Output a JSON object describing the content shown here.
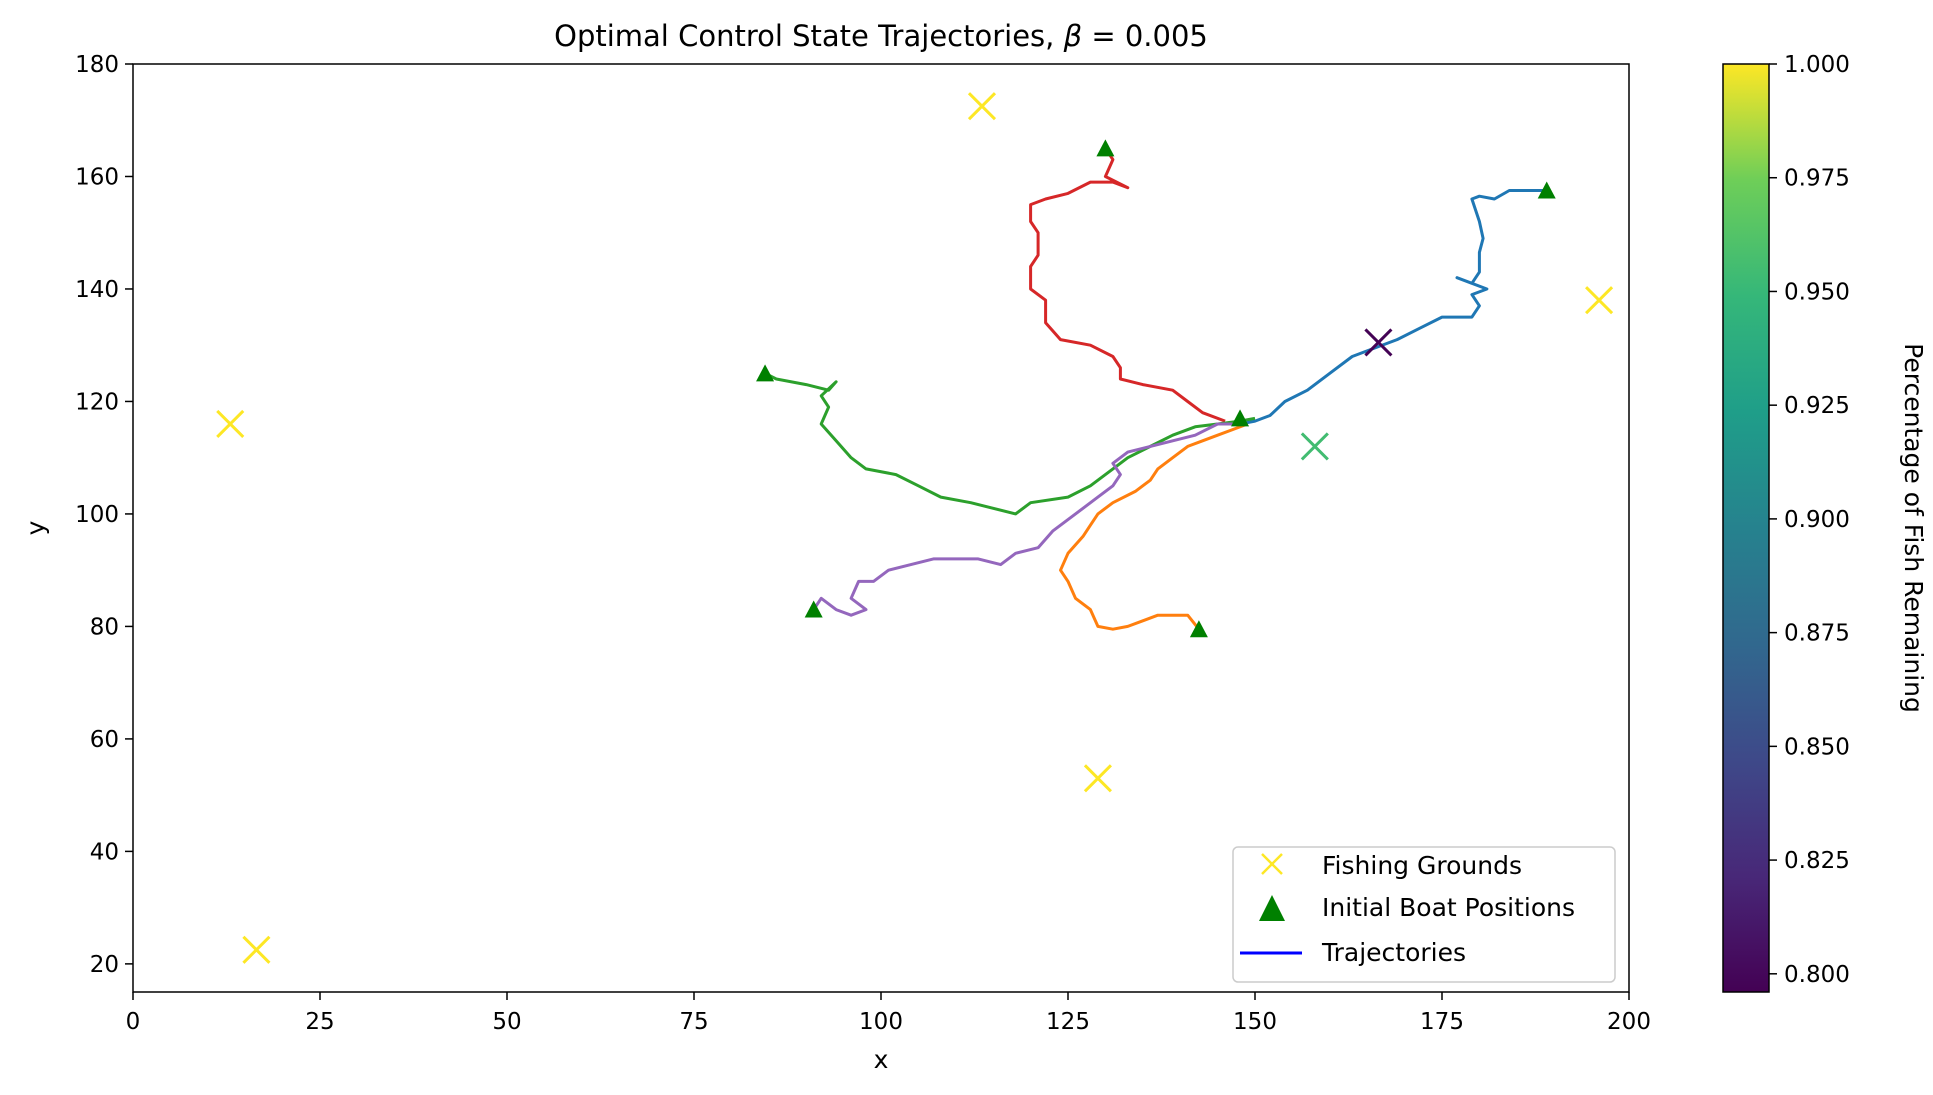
{
  "chart_data": {
    "type": "scatter",
    "title": "Optimal Control State Trajectories, β = 0.005",
    "title_prefix": "Optimal Control State Trajectories, ",
    "title_symbol": "β",
    "title_suffix": " = 0.005",
    "xlabel": "x",
    "ylabel": "y",
    "xlim": [
      0,
      200
    ],
    "ylim": [
      15,
      180
    ],
    "xticks": [
      0,
      25,
      50,
      75,
      100,
      125,
      150,
      175,
      200
    ],
    "yticks": [
      20,
      40,
      60,
      80,
      100,
      120,
      140,
      160,
      180
    ],
    "grid": false,
    "legend_position": "lower right",
    "legend": [
      {
        "label": "Fishing Grounds",
        "marker": "x",
        "color": "#fde725"
      },
      {
        "label": "Initial Boat Positions",
        "marker": "triangle",
        "color": "#008000"
      },
      {
        "label": "Trajectories",
        "marker": "line",
        "color": "#0000ff"
      }
    ],
    "colorbar": {
      "label": "Percentage of Fish Remaining",
      "range": [
        0.796,
        1.0
      ],
      "ticks": [
        "0.800",
        "0.825",
        "0.850",
        "0.875",
        "0.900",
        "0.925",
        "0.950",
        "0.975",
        "1.000"
      ],
      "colormap": "viridis"
    },
    "fishing_grounds": [
      {
        "x": 113.5,
        "y": 172.5,
        "value": 1.0
      },
      {
        "x": 13,
        "y": 116,
        "value": 1.0
      },
      {
        "x": 16.5,
        "y": 22.5,
        "value": 1.0
      },
      {
        "x": 129,
        "y": 53,
        "value": 1.0
      },
      {
        "x": 196,
        "y": 138,
        "value": 1.0
      },
      {
        "x": 158,
        "y": 112,
        "value": 0.955
      },
      {
        "x": 166.5,
        "y": 130.5,
        "value": 0.797
      }
    ],
    "initial_boats": [
      {
        "x": 130,
        "y": 165
      },
      {
        "x": 189,
        "y": 157.5
      },
      {
        "x": 84.5,
        "y": 125
      },
      {
        "x": 91,
        "y": 83
      },
      {
        "x": 142.5,
        "y": 79.5
      },
      {
        "x": 148,
        "y": 117
      }
    ],
    "trajectories": [
      {
        "color": "#1f77b4",
        "points": [
          [
            189,
            157.5
          ],
          [
            184,
            157.5
          ],
          [
            182,
            156
          ],
          [
            180,
            156.5
          ],
          [
            179,
            156
          ],
          [
            180,
            152
          ],
          [
            180.5,
            149
          ],
          [
            180,
            146.5
          ],
          [
            180,
            143
          ],
          [
            179,
            141
          ],
          [
            177,
            142
          ],
          [
            181,
            140
          ],
          [
            179,
            139
          ],
          [
            180,
            137
          ],
          [
            179,
            135
          ],
          [
            175,
            135
          ],
          [
            172,
            133
          ],
          [
            169,
            131
          ],
          [
            166,
            129.5
          ],
          [
            163,
            128
          ],
          [
            160,
            125
          ],
          [
            157,
            122
          ],
          [
            154,
            120
          ],
          [
            152,
            117.5
          ],
          [
            150,
            116.5
          ],
          [
            148,
            116
          ]
        ]
      },
      {
        "color": "#d62728",
        "points": [
          [
            130,
            165
          ],
          [
            131,
            163
          ],
          [
            130,
            160
          ],
          [
            133,
            158
          ],
          [
            131,
            159
          ],
          [
            128,
            159
          ],
          [
            125,
            157
          ],
          [
            122,
            156
          ],
          [
            120,
            155
          ],
          [
            120,
            152
          ],
          [
            121,
            150
          ],
          [
            121,
            146
          ],
          [
            120,
            144
          ],
          [
            120,
            140
          ],
          [
            122,
            138
          ],
          [
            122,
            134
          ],
          [
            124,
            131
          ],
          [
            128,
            130
          ],
          [
            131,
            128
          ],
          [
            132,
            126
          ],
          [
            132,
            124
          ],
          [
            135,
            123
          ],
          [
            139,
            122
          ],
          [
            141,
            120
          ],
          [
            143,
            118
          ],
          [
            146,
            116.5
          ]
        ]
      },
      {
        "color": "#2ca02c",
        "points": [
          [
            84.5,
            125
          ],
          [
            86,
            124
          ],
          [
            90,
            123
          ],
          [
            93,
            122
          ],
          [
            94,
            123.5
          ],
          [
            92,
            121
          ],
          [
            93,
            119
          ],
          [
            92,
            116
          ],
          [
            94,
            113
          ],
          [
            96,
            110
          ],
          [
            98,
            108
          ],
          [
            102,
            107
          ],
          [
            105,
            105
          ],
          [
            108,
            103
          ],
          [
            112,
            102
          ],
          [
            115,
            101
          ],
          [
            118,
            100
          ],
          [
            120,
            102
          ],
          [
            125,
            103
          ],
          [
            128,
            105
          ],
          [
            131,
            108
          ],
          [
            133,
            110
          ],
          [
            136,
            112
          ],
          [
            139,
            114
          ],
          [
            142,
            115.5
          ],
          [
            145,
            116
          ],
          [
            148,
            116.5
          ],
          [
            150,
            117
          ]
        ]
      },
      {
        "color": "#ff7f0e",
        "points": [
          [
            142.5,
            79.5
          ],
          [
            141,
            82
          ],
          [
            137,
            82
          ],
          [
            135,
            81
          ],
          [
            133,
            80
          ],
          [
            131,
            79.5
          ],
          [
            129,
            80
          ],
          [
            128,
            83
          ],
          [
            126,
            85
          ],
          [
            125,
            88
          ],
          [
            124,
            90
          ],
          [
            125,
            93
          ],
          [
            127,
            96
          ],
          [
            128,
            98
          ],
          [
            129,
            100
          ],
          [
            131,
            102
          ],
          [
            134,
            104
          ],
          [
            136,
            106
          ],
          [
            137,
            108
          ],
          [
            139,
            110
          ],
          [
            141,
            112
          ],
          [
            143,
            113
          ],
          [
            145,
            114
          ],
          [
            147,
            115
          ],
          [
            149,
            116
          ]
        ]
      },
      {
        "color": "#9467bd",
        "points": [
          [
            91,
            83
          ],
          [
            92,
            85
          ],
          [
            94,
            83
          ],
          [
            96,
            82
          ],
          [
            98,
            83
          ],
          [
            96,
            85
          ],
          [
            97,
            88
          ],
          [
            99,
            88
          ],
          [
            101,
            90
          ],
          [
            104,
            91
          ],
          [
            107,
            92
          ],
          [
            110,
            92
          ],
          [
            113,
            92
          ],
          [
            116,
            91
          ],
          [
            118,
            93
          ],
          [
            121,
            94
          ],
          [
            123,
            97
          ],
          [
            125,
            99
          ],
          [
            127,
            101
          ],
          [
            129,
            103
          ],
          [
            131,
            105
          ],
          [
            132,
            107
          ],
          [
            131,
            109
          ],
          [
            133,
            111
          ],
          [
            136,
            112
          ],
          [
            139,
            113
          ],
          [
            142,
            114
          ],
          [
            145,
            116
          ],
          [
            147,
            116
          ]
        ]
      }
    ]
  }
}
